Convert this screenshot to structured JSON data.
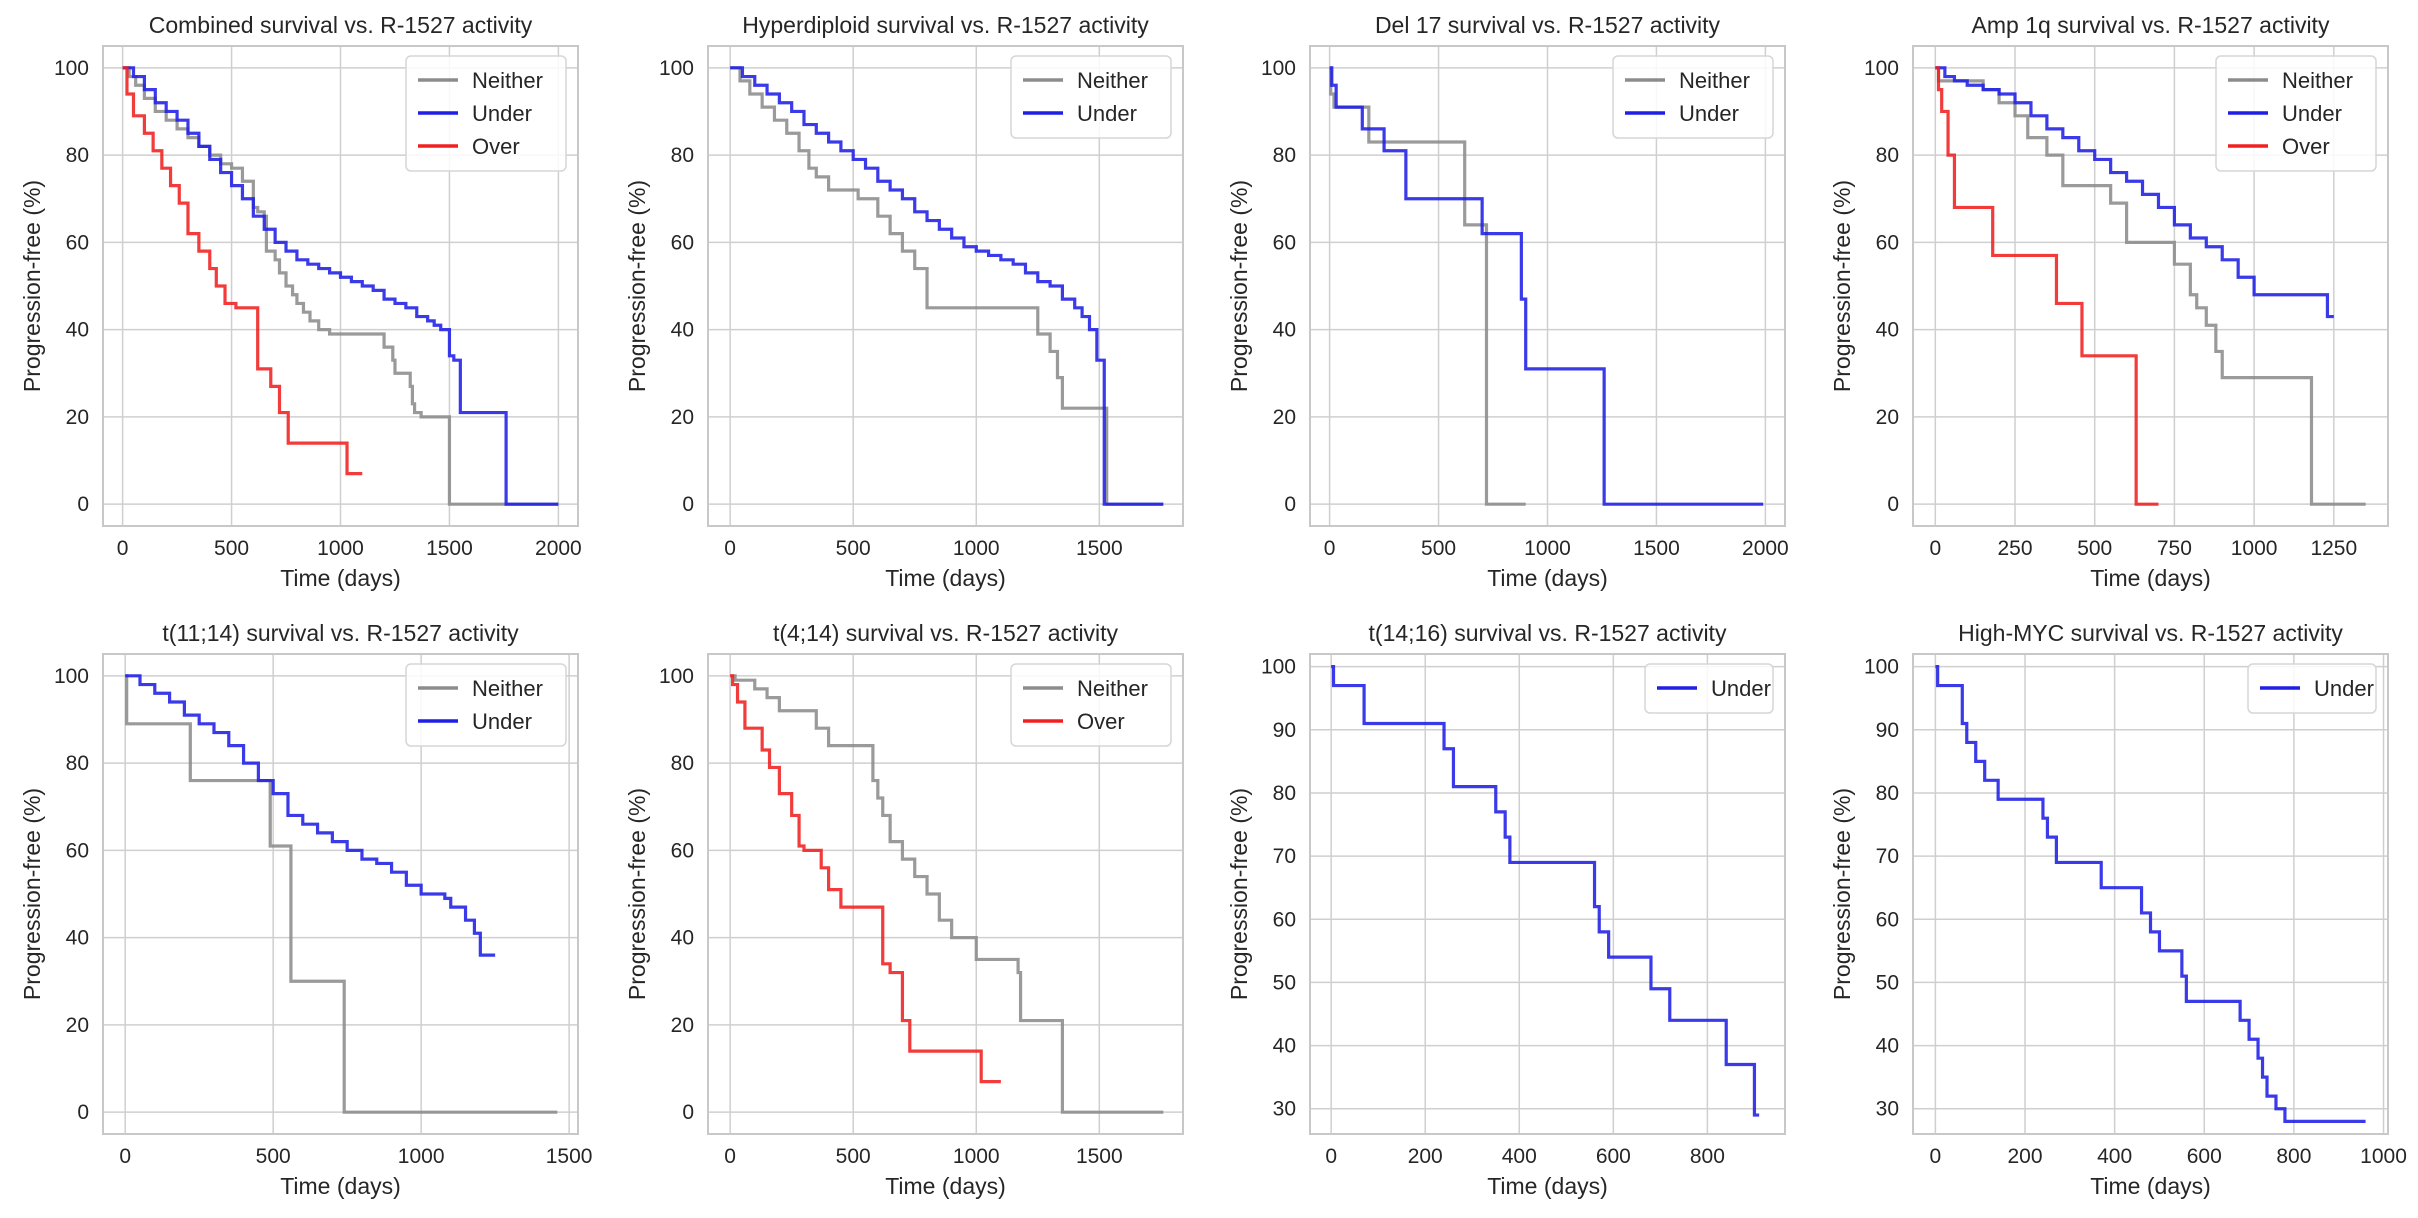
{
  "figure": {
    "name": "R-1527 survival grid"
  },
  "colors": {
    "Neither": "#8c8c8c",
    "Under": "#1f1fe6",
    "Over": "#f02020",
    "grid": "#cfcfcf",
    "frame": "#c8c8c8",
    "text": "#262626"
  },
  "chart_data": [
    {
      "type": "line",
      "title": "Combined survival vs. R-1527 activity",
      "xlabel": "Time (days)",
      "ylabel": "Progression-free (%)",
      "xlim": [
        -90,
        2090
      ],
      "ylim": [
        -5,
        105
      ],
      "xticks": [
        0,
        500,
        1000,
        1500,
        2000
      ],
      "yticks": [
        0,
        20,
        40,
        60,
        80,
        100
      ],
      "legend_position": "top-right",
      "series": [
        {
          "name": "Neither",
          "x": [
            0,
            30,
            60,
            100,
            150,
            200,
            250,
            300,
            350,
            400,
            450,
            500,
            550,
            600,
            620,
            650,
            660,
            700,
            720,
            750,
            780,
            800,
            830,
            860,
            900,
            950,
            1000,
            1100,
            1200,
            1240,
            1250,
            1300,
            1320,
            1330,
            1340,
            1370,
            1400,
            1480,
            1500,
            2000
          ],
          "y": [
            100,
            98,
            96,
            93,
            90,
            88,
            86,
            84,
            82,
            80,
            78,
            77,
            74,
            68,
            67,
            66,
            58,
            56,
            53,
            50,
            48,
            46,
            44,
            42,
            40,
            39,
            39,
            39,
            36,
            33,
            30,
            30,
            27,
            23,
            21,
            20,
            20,
            20,
            0,
            0
          ]
        },
        {
          "name": "Under",
          "x": [
            0,
            50,
            100,
            150,
            200,
            250,
            300,
            350,
            400,
            450,
            500,
            550,
            600,
            650,
            700,
            750,
            800,
            850,
            900,
            950,
            1000,
            1050,
            1100,
            1150,
            1200,
            1250,
            1300,
            1350,
            1400,
            1430,
            1460,
            1500,
            1520,
            1550,
            1750,
            1760,
            2000
          ],
          "y": [
            100,
            98,
            95,
            92,
            90,
            88,
            85,
            82,
            79,
            76,
            73,
            70,
            66,
            63,
            60,
            58,
            56,
            55,
            54,
            53,
            52,
            51,
            50,
            49,
            47,
            46,
            45,
            43,
            42,
            41,
            40,
            34,
            33,
            21,
            21,
            0,
            0
          ]
        },
        {
          "name": "Over",
          "x": [
            0,
            20,
            50,
            100,
            140,
            180,
            220,
            260,
            300,
            350,
            400,
            430,
            470,
            520,
            570,
            620,
            660,
            680,
            720,
            760,
            820,
            900,
            1000,
            1030,
            1100
          ],
          "y": [
            100,
            94,
            89,
            85,
            81,
            77,
            73,
            69,
            62,
            58,
            54,
            50,
            46,
            45,
            45,
            31,
            31,
            27,
            21,
            14,
            14,
            14,
            14,
            7,
            7
          ]
        }
      ]
    },
    {
      "type": "line",
      "title": "Hyperdiploid survival vs. R-1527 activity",
      "xlabel": "Time (days)",
      "ylabel": "Progression-free (%)",
      "xlim": [
        -90,
        1840
      ],
      "ylim": [
        -5,
        105
      ],
      "xticks": [
        0,
        500,
        1000,
        1500
      ],
      "yticks": [
        0,
        20,
        40,
        60,
        80,
        100
      ],
      "legend_position": "top-right",
      "series": [
        {
          "name": "Neither",
          "x": [
            0,
            40,
            80,
            130,
            180,
            230,
            280,
            320,
            350,
            400,
            450,
            520,
            600,
            650,
            700,
            750,
            800,
            900,
            1000,
            1100,
            1200,
            1250,
            1300,
            1330,
            1350,
            1400,
            1520,
            1530,
            1760
          ],
          "y": [
            100,
            97,
            94,
            91,
            88,
            85,
            81,
            77,
            75,
            72,
            72,
            70,
            66,
            62,
            58,
            54,
            45,
            45,
            45,
            45,
            45,
            39,
            35,
            29,
            22,
            22,
            22,
            0,
            0
          ]
        },
        {
          "name": "Under",
          "x": [
            0,
            50,
            100,
            150,
            200,
            250,
            300,
            350,
            400,
            450,
            500,
            550,
            600,
            650,
            700,
            750,
            800,
            850,
            900,
            950,
            1000,
            1050,
            1100,
            1150,
            1200,
            1250,
            1300,
            1350,
            1400,
            1430,
            1460,
            1490,
            1510,
            1520,
            1760
          ],
          "y": [
            100,
            98,
            96,
            94,
            92,
            90,
            87,
            85,
            83,
            81,
            79,
            77,
            74,
            72,
            70,
            67,
            65,
            63,
            61,
            59,
            58,
            57,
            56,
            55,
            53,
            51,
            50,
            47,
            45,
            43,
            40,
            33,
            33,
            0,
            0
          ]
        }
      ]
    },
    {
      "type": "line",
      "title": "Del 17 survival vs. R-1527 activity",
      "xlabel": "Time (days)",
      "ylabel": "Progression-free (%)",
      "xlim": [
        -90,
        2090
      ],
      "ylim": [
        -5,
        105
      ],
      "xticks": [
        0,
        500,
        1000,
        1500,
        2000
      ],
      "yticks": [
        0,
        20,
        40,
        60,
        80,
        100
      ],
      "legend_position": "top-right",
      "series": [
        {
          "name": "Neither",
          "x": [
            0,
            5,
            20,
            50,
            150,
            180,
            590,
            620,
            700,
            720,
            900
          ],
          "y": [
            100,
            94,
            91,
            91,
            91,
            83,
            83,
            64,
            64,
            0,
            0
          ]
        },
        {
          "name": "Under",
          "x": [
            0,
            10,
            30,
            80,
            150,
            220,
            250,
            350,
            400,
            500,
            650,
            700,
            870,
            880,
            900,
            950,
            1000,
            1250,
            1260,
            1990
          ],
          "y": [
            100,
            96,
            91,
            91,
            86,
            86,
            81,
            70,
            70,
            70,
            70,
            62,
            62,
            47,
            31,
            31,
            31,
            31,
            0,
            0
          ]
        }
      ]
    },
    {
      "type": "line",
      "title": "Amp 1q survival vs. R-1527 activity",
      "xlabel": "Time (days)",
      "ylabel": "Progression-free (%)",
      "xlim": [
        -70,
        1420
      ],
      "ylim": [
        -5,
        105
      ],
      "xticks": [
        0,
        250,
        500,
        750,
        1000,
        1250
      ],
      "yticks": [
        0,
        20,
        40,
        60,
        80,
        100
      ],
      "legend_position": "top-right",
      "series": [
        {
          "name": "Neither",
          "x": [
            0,
            10,
            100,
            150,
            200,
            250,
            290,
            350,
            400,
            500,
            550,
            600,
            650,
            700,
            750,
            800,
            820,
            850,
            880,
            900,
            1150,
            1180,
            1350
          ],
          "y": [
            100,
            97,
            97,
            95,
            92,
            89,
            84,
            80,
            73,
            73,
            69,
            60,
            60,
            60,
            55,
            48,
            45,
            41,
            35,
            29,
            29,
            0,
            0
          ]
        },
        {
          "name": "Under",
          "x": [
            0,
            30,
            60,
            100,
            150,
            200,
            250,
            300,
            350,
            400,
            450,
            500,
            550,
            600,
            650,
            700,
            750,
            800,
            850,
            900,
            950,
            1000,
            1100,
            1200,
            1230,
            1250
          ],
          "y": [
            100,
            98,
            97,
            96,
            95,
            94,
            92,
            89,
            86,
            84,
            81,
            79,
            76,
            74,
            71,
            68,
            64,
            61,
            59,
            56,
            52,
            48,
            48,
            48,
            43,
            43
          ]
        },
        {
          "name": "Over",
          "x": [
            0,
            10,
            20,
            40,
            60,
            170,
            180,
            370,
            380,
            450,
            460,
            560,
            620,
            630,
            700
          ],
          "y": [
            100,
            95,
            90,
            80,
            68,
            68,
            57,
            57,
            46,
            46,
            34,
            34,
            34,
            0,
            0
          ]
        }
      ]
    },
    {
      "type": "line",
      "title": "t(11;14) survival vs. R-1527 activity",
      "xlabel": "Time (days)",
      "ylabel": "Progression-free (%)",
      "xlim": [
        -75,
        1530
      ],
      "ylim": [
        -5,
        105
      ],
      "xticks": [
        0,
        500,
        1000,
        1500
      ],
      "yticks": [
        0,
        20,
        40,
        60,
        80,
        100
      ],
      "legend_position": "top-right",
      "series": [
        {
          "name": "Neither",
          "x": [
            0,
            5,
            210,
            220,
            480,
            490,
            550,
            560,
            730,
            740,
            1460
          ],
          "y": [
            100,
            89,
            89,
            76,
            76,
            61,
            61,
            30,
            30,
            0,
            0
          ]
        },
        {
          "name": "Under",
          "x": [
            0,
            50,
            100,
            150,
            200,
            250,
            300,
            350,
            400,
            450,
            500,
            550,
            600,
            650,
            700,
            750,
            800,
            850,
            900,
            950,
            1000,
            1050,
            1080,
            1100,
            1150,
            1180,
            1200,
            1250
          ],
          "y": [
            100,
            98,
            96,
            94,
            91,
            89,
            87,
            84,
            80,
            76,
            73,
            68,
            66,
            64,
            62,
            60,
            58,
            57,
            55,
            52,
            50,
            50,
            49,
            47,
            44,
            41,
            36,
            36
          ]
        }
      ]
    },
    {
      "type": "line",
      "title": "t(4;14) survival vs. R-1527 activity",
      "xlabel": "Time (days)",
      "ylabel": "Progression-free (%)",
      "xlim": [
        -90,
        1840
      ],
      "ylim": [
        -5,
        105
      ],
      "xticks": [
        0,
        500,
        1000,
        1500
      ],
      "yticks": [
        0,
        20,
        40,
        60,
        80,
        100
      ],
      "legend_position": "top-right",
      "series": [
        {
          "name": "Neither",
          "x": [
            0,
            20,
            100,
            150,
            200,
            350,
            400,
            440,
            550,
            580,
            600,
            620,
            650,
            700,
            750,
            800,
            850,
            900,
            1000,
            1100,
            1170,
            1180,
            1340,
            1350,
            1760
          ],
          "y": [
            100,
            99,
            97,
            95,
            92,
            88,
            84,
            84,
            84,
            76,
            72,
            68,
            62,
            58,
            54,
            50,
            44,
            40,
            35,
            35,
            32,
            21,
            21,
            0,
            0
          ]
        },
        {
          "name": "Over",
          "x": [
            0,
            10,
            30,
            60,
            130,
            160,
            200,
            250,
            280,
            300,
            370,
            400,
            450,
            600,
            620,
            650,
            700,
            730,
            900,
            1000,
            1020,
            1100
          ],
          "y": [
            100,
            98,
            94,
            88,
            83,
            79,
            73,
            68,
            61,
            60,
            56,
            51,
            47,
            47,
            34,
            32,
            21,
            14,
            14,
            14,
            7,
            7
          ]
        }
      ]
    },
    {
      "type": "line",
      "title": "t(14;16) survival vs. R-1527 activity",
      "xlabel": "Time (days)",
      "ylabel": "Progression-free (%)",
      "xlim": [
        -45,
        965
      ],
      "ylim": [
        26,
        102
      ],
      "xticks": [
        0,
        200,
        400,
        600,
        800
      ],
      "yticks": [
        30,
        40,
        50,
        60,
        70,
        80,
        90,
        100
      ],
      "legend_position": "top-right",
      "series": [
        {
          "name": "Under",
          "x": [
            0,
            5,
            60,
            70,
            200,
            240,
            260,
            330,
            350,
            370,
            380,
            550,
            560,
            570,
            590,
            600,
            650,
            680,
            720,
            780,
            830,
            840,
            890,
            900,
            910
          ],
          "y": [
            100,
            97,
            97,
            91,
            91,
            87,
            81,
            81,
            77,
            73,
            69,
            69,
            62,
            58,
            54,
            54,
            54,
            49,
            44,
            44,
            44,
            37,
            37,
            29,
            29
          ]
        }
      ]
    },
    {
      "type": "line",
      "title": "High-MYC survival vs. R-1527 activity",
      "xlabel": "Time (days)",
      "ylabel": "Progression-free (%)",
      "xlim": [
        -50,
        1010
      ],
      "ylim": [
        26,
        102
      ],
      "xticks": [
        0,
        200,
        400,
        600,
        800,
        1000
      ],
      "yticks": [
        30,
        40,
        50,
        60,
        70,
        80,
        90,
        100
      ],
      "legend_position": "top-right",
      "series": [
        {
          "name": "Under",
          "x": [
            0,
            5,
            60,
            70,
            90,
            110,
            140,
            230,
            240,
            250,
            270,
            370,
            460,
            480,
            500,
            550,
            560,
            650,
            680,
            700,
            720,
            730,
            740,
            760,
            770,
            780,
            960
          ],
          "y": [
            100,
            97,
            91,
            88,
            85,
            82,
            79,
            79,
            76,
            73,
            69,
            65,
            61,
            58,
            55,
            51,
            47,
            47,
            44,
            41,
            38,
            35,
            32,
            30,
            30,
            28,
            28
          ]
        }
      ]
    }
  ]
}
